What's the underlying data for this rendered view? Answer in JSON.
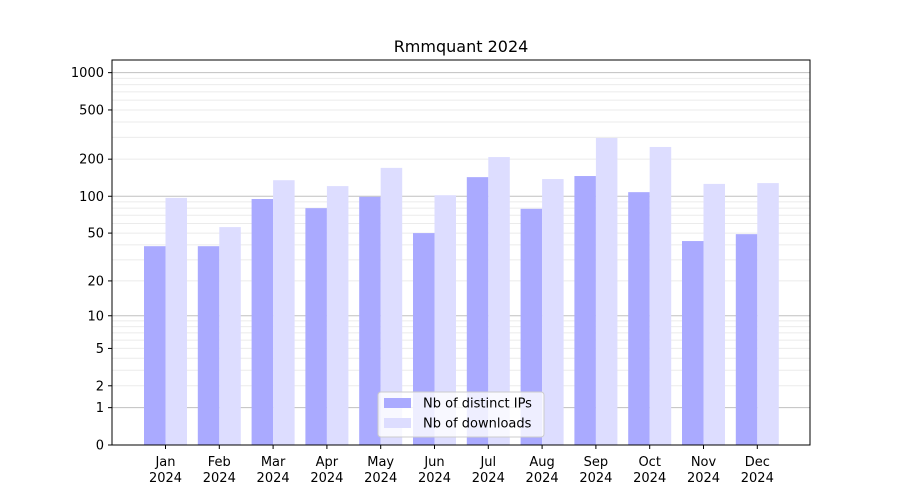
{
  "chart_data": {
    "type": "bar",
    "title": "Rmmquant 2024",
    "xlabel": "",
    "ylabel": "",
    "yscale": "symlog",
    "ylim": [
      0,
      1300
    ],
    "yticks": [
      0,
      1,
      2,
      5,
      10,
      20,
      50,
      100,
      200,
      500,
      1000
    ],
    "grid": true,
    "legend_position": "bottom-center",
    "categories": [
      "Jan\n2024",
      "Feb\n2024",
      "Mar\n2024",
      "Apr\n2024",
      "May\n2024",
      "Jun\n2024",
      "Jul\n2024",
      "Aug\n2024",
      "Sep\n2024",
      "Oct\n2024",
      "Nov\n2024",
      "Dec\n2024"
    ],
    "series": [
      {
        "name": "Nb of distinct IPs",
        "color": "#aaaaff",
        "values": [
          39,
          39,
          95,
          80,
          99,
          50,
          143,
          79,
          146,
          108,
          43,
          49
        ]
      },
      {
        "name": "Nb of downloads",
        "color": "#ddddff",
        "values": [
          97,
          56,
          135,
          121,
          170,
          102,
          208,
          138,
          297,
          251,
          126,
          128
        ]
      }
    ]
  }
}
